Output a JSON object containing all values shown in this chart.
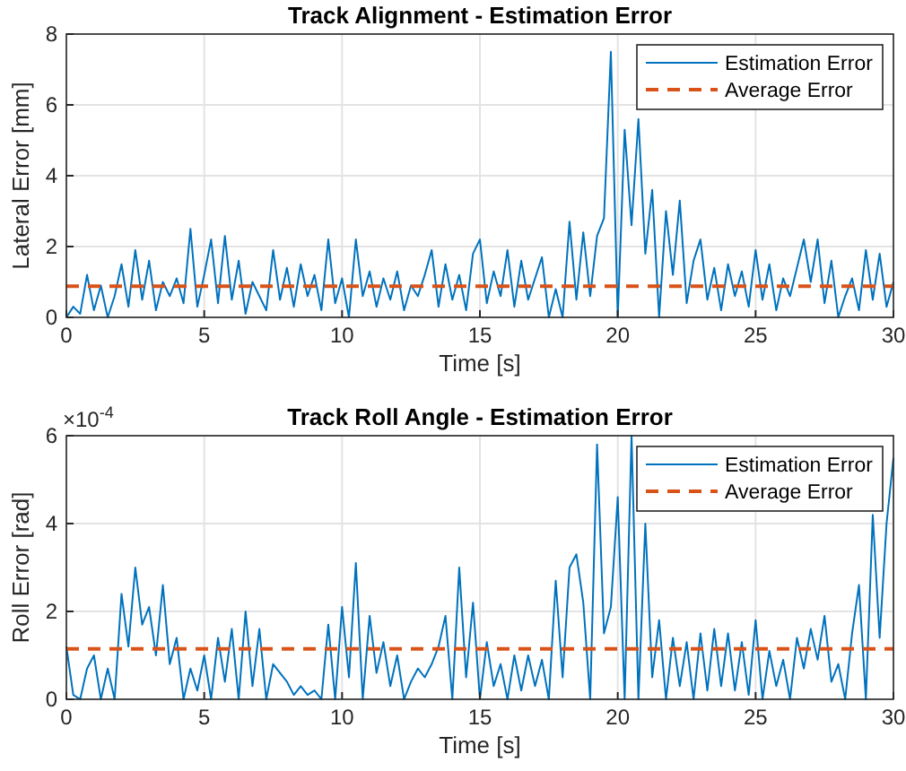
{
  "chart_data": [
    {
      "type": "line",
      "title": "Track Alignment - Estimation Error",
      "xlabel": "Time [s]",
      "ylabel": "Lateral Error [mm]",
      "x": [
        0,
        0.25,
        0.5,
        0.75,
        1,
        1.25,
        1.5,
        1.75,
        2,
        2.25,
        2.5,
        2.75,
        3,
        3.25,
        3.5,
        3.75,
        4,
        4.25,
        4.5,
        4.75,
        5,
        5.25,
        5.5,
        5.75,
        6,
        6.25,
        6.5,
        6.75,
        7,
        7.25,
        7.5,
        7.75,
        8,
        8.25,
        8.5,
        8.75,
        9,
        9.25,
        9.5,
        9.75,
        10,
        10.25,
        10.5,
        10.75,
        11,
        11.25,
        11.5,
        11.75,
        12,
        12.25,
        12.5,
        12.75,
        13,
        13.25,
        13.5,
        13.75,
        14,
        14.25,
        14.5,
        14.75,
        15,
        15.25,
        15.5,
        15.75,
        16,
        16.25,
        16.5,
        16.75,
        17,
        17.25,
        17.5,
        17.75,
        18,
        18.25,
        18.5,
        18.75,
        19,
        19.25,
        19.5,
        19.75,
        20,
        20.25,
        20.5,
        20.75,
        21,
        21.25,
        21.5,
        21.75,
        22,
        22.25,
        22.5,
        22.75,
        23,
        23.25,
        23.5,
        23.75,
        24,
        24.25,
        24.5,
        24.75,
        25,
        25.25,
        25.5,
        25.75,
        26,
        26.25,
        26.5,
        26.75,
        27,
        27.25,
        27.5,
        27.75,
        28,
        28.25,
        28.5,
        28.75,
        29,
        29.25,
        29.5,
        29.75,
        30
      ],
      "series": [
        {
          "name": "Estimation Error",
          "color": "#0072bd",
          "line_style": "solid",
          "values": [
            0,
            0.3,
            0.1,
            1.2,
            0.2,
            0.9,
            0,
            0.6,
            1.5,
            0.3,
            1.9,
            0.5,
            1.6,
            0.2,
            1.0,
            0.6,
            1.1,
            0.4,
            2.5,
            0.3,
            1.2,
            2.2,
            0.4,
            2.3,
            0.5,
            1.6,
            0.1,
            1.0,
            0.6,
            0.2,
            1.9,
            0.5,
            1.4,
            0.3,
            1.5,
            0.6,
            1.2,
            0.2,
            2.2,
            0.4,
            1.1,
            0,
            2.2,
            0.6,
            1.3,
            0.3,
            1.1,
            0.5,
            1.3,
            0.2,
            0.9,
            0.6,
            1.2,
            1.9,
            0.3,
            1.5,
            0.5,
            1.2,
            0.2,
            1.8,
            2.2,
            0.4,
            1.3,
            0.6,
            1.9,
            0.3,
            1.6,
            0.5,
            1.1,
            1.7,
            0,
            0.8,
            0,
            2.7,
            0.5,
            2.4,
            0.6,
            2.3,
            2.8,
            7.5,
            0,
            5.3,
            2.6,
            5.6,
            1.8,
            3.6,
            0,
            3.0,
            1.2,
            3.3,
            0.4,
            1.6,
            2.2,
            0.5,
            1.4,
            0.2,
            1.5,
            0.6,
            1.3,
            0.3,
            1.9,
            0.5,
            1.5,
            0.2,
            1.1,
            0.6,
            1.4,
            2.2,
            1.0,
            2.2,
            0.4,
            1.6,
            0,
            0.6,
            1.1,
            0.2,
            1.9,
            0.5,
            1.8,
            0.3,
            1.0
          ]
        }
      ],
      "ref_lines": [
        {
          "axis": "y",
          "value": 0.88,
          "label": "Average Error",
          "color": "#d95319",
          "line_style": "dashed"
        }
      ],
      "xlim": [
        0,
        30
      ],
      "xticks": [
        0,
        5,
        10,
        15,
        20,
        25,
        30
      ],
      "ylim": [
        0,
        8
      ],
      "yticks": [
        0,
        2,
        4,
        6,
        8
      ],
      "grid": true,
      "legend": "top right"
    },
    {
      "type": "line",
      "title": "Track Roll Angle - Estimation Error",
      "xlabel": "Time [s]",
      "ylabel": "Roll Error [rad]",
      "annotations": [
        "×10$^{-4}$"
      ],
      "x": [
        0,
        0.25,
        0.5,
        0.75,
        1,
        1.25,
        1.5,
        1.75,
        2,
        2.25,
        2.5,
        2.75,
        3,
        3.25,
        3.5,
        3.75,
        4,
        4.25,
        4.5,
        4.75,
        5,
        5.25,
        5.5,
        5.75,
        6,
        6.25,
        6.5,
        6.75,
        7,
        7.25,
        7.5,
        7.75,
        8,
        8.25,
        8.5,
        8.75,
        9,
        9.25,
        9.5,
        9.75,
        10,
        10.25,
        10.5,
        10.75,
        11,
        11.25,
        11.5,
        11.75,
        12,
        12.25,
        12.5,
        12.75,
        13,
        13.25,
        13.5,
        13.75,
        14,
        14.25,
        14.5,
        14.75,
        15,
        15.25,
        15.5,
        15.75,
        16,
        16.25,
        16.5,
        16.75,
        17,
        17.25,
        17.5,
        17.75,
        18,
        18.25,
        18.5,
        18.75,
        19,
        19.25,
        19.5,
        19.75,
        20,
        20.25,
        20.5,
        20.75,
        21,
        21.25,
        21.5,
        21.75,
        22,
        22.25,
        22.5,
        22.75,
        23,
        23.25,
        23.5,
        23.75,
        24,
        24.25,
        24.5,
        24.75,
        25,
        25.25,
        25.5,
        25.75,
        26,
        26.25,
        26.5,
        26.75,
        27,
        27.25,
        27.5,
        27.75,
        28,
        28.25,
        28.5,
        28.75,
        29,
        29.25,
        29.5,
        29.75,
        30
      ],
      "series": [
        {
          "name": "Estimation Error",
          "color": "#0072bd",
          "line_style": "solid",
          "values": [
            1.2,
            0.1,
            0,
            0.7,
            1.0,
            0,
            0.7,
            0,
            2.4,
            1.2,
            3.0,
            1.7,
            2.1,
            1.0,
            2.6,
            0.8,
            1.4,
            0,
            0.7,
            0.2,
            1.0,
            0,
            1.4,
            0.4,
            1.6,
            0,
            2.0,
            0.3,
            1.6,
            0,
            0.8,
            0.6,
            0.4,
            0.1,
            0.3,
            0.1,
            0.2,
            0,
            1.7,
            0,
            2.1,
            0.5,
            3.1,
            0,
            1.9,
            0.6,
            1.3,
            0.3,
            1.0,
            0,
            0.4,
            0.7,
            0.5,
            0.8,
            1.2,
            1.9,
            0,
            3.0,
            0.5,
            2.2,
            0,
            1.3,
            0.3,
            0.8,
            0,
            1.0,
            0.2,
            1.0,
            0.3,
            0.9,
            0,
            2.7,
            0.5,
            3.0,
            3.3,
            2.2,
            0,
            5.8,
            1.5,
            2.1,
            4.6,
            0,
            6.0,
            0,
            4.0,
            0.5,
            1.8,
            0,
            1.4,
            0.3,
            1.3,
            0,
            1.5,
            0.2,
            1.6,
            0.3,
            1.5,
            0.2,
            1.3,
            0.1,
            1.8,
            0,
            1.1,
            0.3,
            0.9,
            0,
            1.4,
            0.7,
            1.6,
            0.9,
            1.9,
            0.4,
            0.8,
            0,
            1.5,
            2.6,
            0,
            4.2,
            1.4,
            4.0,
            5.5
          ]
        }
      ],
      "ref_lines": [
        {
          "axis": "y",
          "value": 1.15,
          "label": "Average Error",
          "color": "#d95319",
          "line_style": "dashed"
        }
      ],
      "xlim": [
        0,
        30
      ],
      "xticks": [
        0,
        5,
        10,
        15,
        20,
        25,
        30
      ],
      "ylim": [
        0,
        6
      ],
      "yticks": [
        0,
        2,
        4,
        6
      ],
      "grid": true,
      "legend": "top right"
    }
  ]
}
